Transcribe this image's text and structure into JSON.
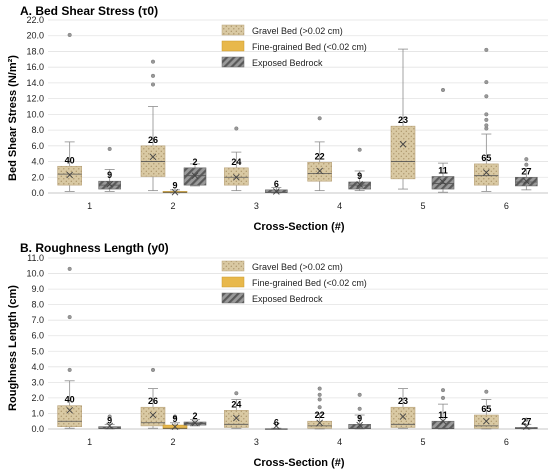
{
  "colors": {
    "gravel": "#d9c9a3",
    "gravel_dots": "#a89066",
    "fine": "#e8b84b",
    "bedrock": "#8c8c8c",
    "bedrock_stripe": "#5a5a5a",
    "whisker": "#8c8c8c",
    "grid": "#e3e3e3"
  },
  "legend_items": [
    {
      "label": "Gravel Bed (>0.02 cm)",
      "key": "gravel"
    },
    {
      "label": "Fine-grained Bed (<0.02 cm)",
      "key": "fine"
    },
    {
      "label": "Exposed Bedrock",
      "key": "bedrock"
    }
  ],
  "chart_data": [
    {
      "type": "box",
      "title": "A. Bed Shear Stress (τ0)",
      "xlabel": "Cross-Section (#)",
      "ylabel": "Bed Shear Stress (N/m²)",
      "ylim": [
        0,
        22
      ],
      "yticks": [
        0,
        2,
        4,
        6,
        8,
        10,
        12,
        14,
        16,
        18,
        20,
        22
      ],
      "ytick_labels": [
        "0.0",
        "2.0",
        "4.0",
        "6.0",
        "8.0",
        "10.0",
        "12.0",
        "14.0",
        "16.0",
        "18.0",
        "20.0",
        "22.0"
      ],
      "categories": [
        "1",
        "2",
        "3",
        "4",
        "5",
        "6"
      ],
      "grid": true,
      "series": [
        {
          "name": "Gravel Bed (>0.02 cm)",
          "key": "gravel",
          "boxes": [
            {
              "cat": "1",
              "n": "40",
              "min": 0.2,
              "q1": 1.0,
              "median": 2.4,
              "q3": 3.4,
              "max": 6.5,
              "mean": 2.3,
              "outliers": [
                20.1
              ]
            },
            {
              "cat": "2",
              "n": "26",
              "min": 0.3,
              "q1": 2.1,
              "median": 4.0,
              "q3": 6.0,
              "max": 11.0,
              "mean": 4.6,
              "outliers": [
                13.8,
                14.9,
                16.7
              ]
            },
            {
              "cat": "3",
              "n": "24",
              "min": 0.3,
              "q1": 1.0,
              "median": 2.0,
              "q3": 3.2,
              "max": 5.2,
              "mean": 2.0,
              "outliers": [
                8.2
              ]
            },
            {
              "cat": "4",
              "n": "22",
              "min": 0.3,
              "q1": 1.5,
              "median": 2.5,
              "q3": 3.9,
              "max": 6.5,
              "mean": 2.8,
              "outliers": [
                9.5
              ]
            },
            {
              "cat": "5",
              "n": "23",
              "min": 0.5,
              "q1": 1.8,
              "median": 4.0,
              "q3": 8.5,
              "max": 18.3,
              "mean": 6.2,
              "outliers": []
            },
            {
              "cat": "6",
              "n": "65",
              "min": 0.2,
              "q1": 1.0,
              "median": 2.2,
              "q3": 3.7,
              "max": 7.5,
              "mean": 2.6,
              "outliers": [
                8.2,
                8.6,
                9.3,
                10.0,
                12.3,
                14.1,
                18.2
              ]
            }
          ]
        },
        {
          "name": "Fine-grained Bed (<0.02 cm)",
          "key": "fine",
          "boxes": [
            {
              "cat": "2",
              "n": "9",
              "min": 0.0,
              "q1": 0.05,
              "median": 0.1,
              "q3": 0.2,
              "max": 0.4,
              "mean": 0.1,
              "outliers": []
            }
          ]
        },
        {
          "name": "Exposed Bedrock",
          "key": "bedrock",
          "boxes": [
            {
              "cat": "1",
              "n": "9",
              "min": 0.2,
              "q1": 0.5,
              "median": 1.0,
              "q3": 1.5,
              "max": 3.0,
              "mean": 1.1,
              "outliers": [
                5.6
              ]
            },
            {
              "cat": "2",
              "n": "2",
              "min": 0.9,
              "q1": 1.0,
              "median": 2.2,
              "q3": 3.2,
              "max": 3.7,
              "mean": 2.2,
              "outliers": []
            },
            {
              "cat": "3",
              "n": "6",
              "min": 0.0,
              "q1": 0.05,
              "median": 0.1,
              "q3": 0.4,
              "max": 0.7,
              "mean": 0.2,
              "outliers": []
            },
            {
              "cat": "4",
              "n": "9",
              "min": 0.3,
              "q1": 0.5,
              "median": 1.0,
              "q3": 1.4,
              "max": 2.8,
              "mean": 1.1,
              "outliers": [
                5.5
              ]
            },
            {
              "cat": "5",
              "n": "11",
              "min": 0.1,
              "q1": 0.5,
              "median": 1.2,
              "q3": 2.1,
              "max": 3.8,
              "mean": 1.4,
              "outliers": [
                13.1
              ]
            },
            {
              "cat": "6",
              "n": "27",
              "min": 0.4,
              "q1": 0.9,
              "median": 1.4,
              "q3": 2.0,
              "max": 3.1,
              "mean": 1.5,
              "outliers": [
                3.6,
                4.3
              ]
            }
          ]
        }
      ]
    },
    {
      "type": "box",
      "title": "B. Roughness Length (y0)",
      "xlabel": "Cross-Section (#)",
      "ylabel": "Roughness Length (cm)",
      "ylim": [
        0,
        11
      ],
      "yticks": [
        0,
        1,
        2,
        3,
        4,
        5,
        6,
        7,
        8,
        9,
        10,
        11
      ],
      "ytick_labels": [
        "0.0",
        "1.0",
        "2.0",
        "3.0",
        "4.0",
        "5.0",
        "6.0",
        "7.0",
        "8.0",
        "9.0",
        "10.0",
        "11.0"
      ],
      "categories": [
        "1",
        "2",
        "3",
        "4",
        "5",
        "6"
      ],
      "grid": true,
      "series": [
        {
          "name": "Gravel Bed (>0.02 cm)",
          "key": "gravel",
          "boxes": [
            {
              "cat": "1",
              "n": "40",
              "min": 0.05,
              "q1": 0.15,
              "median": 0.5,
              "q3": 1.5,
              "max": 3.1,
              "mean": 1.2,
              "outliers": [
                3.8,
                7.2,
                10.3
              ]
            },
            {
              "cat": "2",
              "n": "26",
              "min": 0.05,
              "q1": 0.2,
              "median": 0.4,
              "q3": 1.4,
              "max": 2.6,
              "mean": 0.9,
              "outliers": [
                3.8
              ]
            },
            {
              "cat": "3",
              "n": "24",
              "min": 0.05,
              "q1": 0.1,
              "median": 0.3,
              "q3": 1.2,
              "max": 1.9,
              "mean": 0.7,
              "outliers": [
                2.3
              ]
            },
            {
              "cat": "4",
              "n": "22",
              "min": 0.0,
              "q1": 0.05,
              "median": 0.2,
              "q3": 0.5,
              "max": 1.0,
              "mean": 0.4,
              "outliers": [
                1.4,
                1.9,
                2.2,
                2.6
              ]
            },
            {
              "cat": "5",
              "n": "23",
              "min": 0.05,
              "q1": 0.1,
              "median": 0.3,
              "q3": 1.4,
              "max": 2.6,
              "mean": 0.8,
              "outliers": []
            },
            {
              "cat": "6",
              "n": "65",
              "min": 0.0,
              "q1": 0.05,
              "median": 0.2,
              "q3": 0.9,
              "max": 1.9,
              "mean": 0.5,
              "outliers": [
                2.4
              ]
            }
          ]
        },
        {
          "name": "Fine-grained Bed (<0.02 cm)",
          "key": "fine",
          "boxes": [
            {
              "cat": "2",
              "n": "9",
              "min": 0.0,
              "q1": 0.02,
              "median": 0.05,
              "q3": 0.25,
              "max": 0.4,
              "mean": 0.15,
              "outliers": [
                0.8
              ]
            }
          ]
        },
        {
          "name": "Exposed Bedrock",
          "key": "bedrock",
          "boxes": [
            {
              "cat": "1",
              "n": "9",
              "min": 0.0,
              "q1": 0.02,
              "median": 0.05,
              "q3": 0.15,
              "max": 0.3,
              "mean": 0.2,
              "outliers": [
                0.8
              ]
            },
            {
              "cat": "2",
              "n": "2",
              "min": 0.2,
              "q1": 0.25,
              "median": 0.35,
              "q3": 0.45,
              "max": 0.6,
              "mean": 0.4,
              "outliers": []
            },
            {
              "cat": "3",
              "n": "6",
              "min": 0.0,
              "q1": 0.0,
              "median": 0.0,
              "q3": 0.02,
              "max": 0.05,
              "mean": 0.2,
              "outliers": []
            },
            {
              "cat": "4",
              "n": "9",
              "min": 0.0,
              "q1": 0.02,
              "median": 0.05,
              "q3": 0.3,
              "max": 0.9,
              "mean": 0.25,
              "outliers": [
                1.3,
                2.2
              ]
            },
            {
              "cat": "5",
              "n": "11",
              "min": 0.0,
              "q1": 0.02,
              "median": 0.05,
              "q3": 0.5,
              "max": 1.6,
              "mean": 0.5,
              "outliers": [
                2.0,
                2.5
              ]
            },
            {
              "cat": "6",
              "n": "27",
              "min": 0.0,
              "q1": 0.02,
              "median": 0.05,
              "q3": 0.1,
              "max": 0.3,
              "mean": 0.15,
              "outliers": [
                0.6
              ]
            }
          ]
        }
      ]
    }
  ]
}
